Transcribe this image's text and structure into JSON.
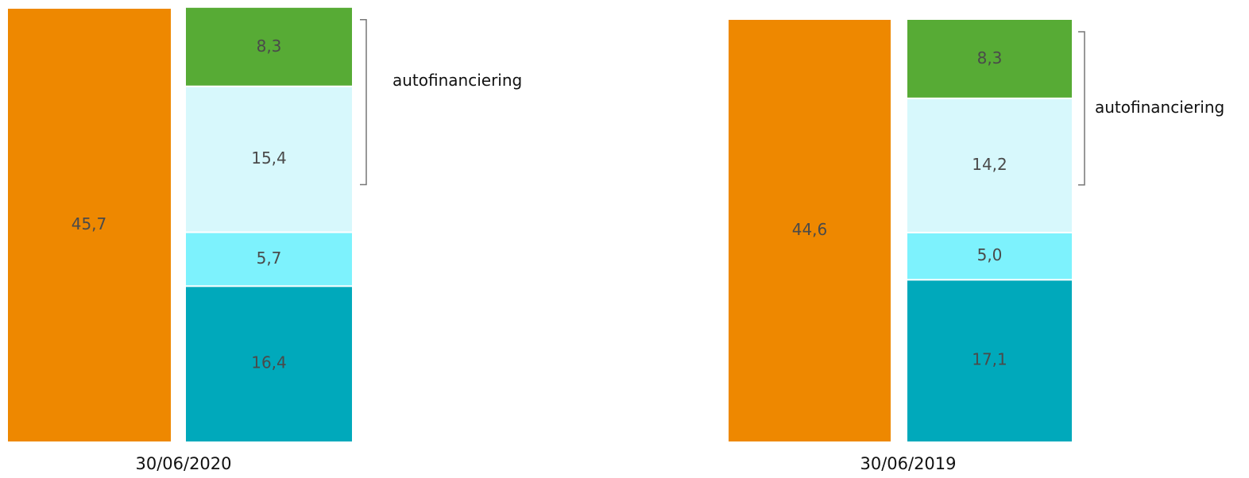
{
  "chart_data": [
    {
      "type": "bar",
      "category": "30/06/2020",
      "left_bar": {
        "value": 45.7,
        "label": "45,7",
        "color": "#ee8800"
      },
      "right_bar": {
        "segments_top_to_bottom": [
          {
            "value": 8.3,
            "label": "8,3",
            "color": "#57ab35"
          },
          {
            "value": 15.4,
            "label": "15,4",
            "color": "#d7f8fc"
          },
          {
            "value": 5.7,
            "label": "5,7",
            "color": "#7df2fd"
          },
          {
            "value": 16.4,
            "label": "16,4",
            "color": "#00a9bb"
          }
        ]
      },
      "annotation": {
        "text": "autofinanciering",
        "covers_segments": [
          "8,3",
          "15,4"
        ]
      }
    },
    {
      "type": "bar",
      "category": "30/06/2019",
      "left_bar": {
        "value": 44.6,
        "label": "44,6",
        "color": "#ee8800"
      },
      "right_bar": {
        "segments_top_to_bottom": [
          {
            "value": 8.3,
            "label": "8,3",
            "color": "#57ab35"
          },
          {
            "value": 14.2,
            "label": "14,2",
            "color": "#d7f8fc"
          },
          {
            "value": 5.0,
            "label": "5,0",
            "color": "#7df2fd"
          },
          {
            "value": 17.1,
            "label": "17,1",
            "color": "#00a9bb"
          }
        ]
      },
      "annotation": {
        "text": "autofinanciering",
        "covers_segments": [
          "8,3",
          "14,2"
        ]
      }
    }
  ]
}
